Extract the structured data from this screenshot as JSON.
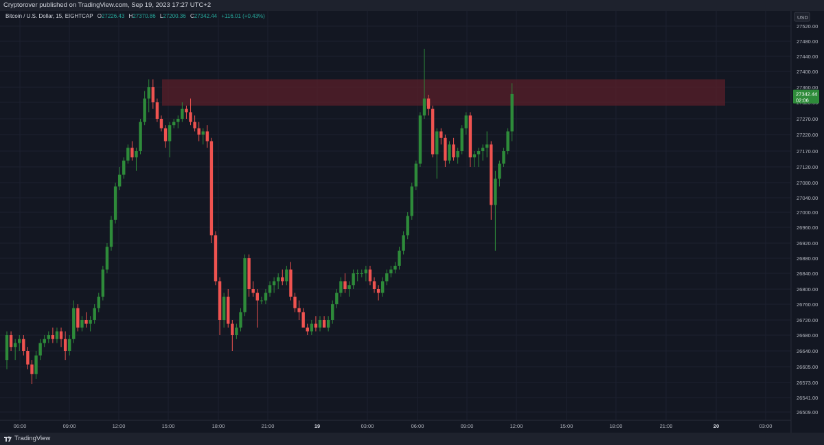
{
  "header": {
    "published": "Cryptorover published on TradingView.com, Sep 19, 2023 17:27 UTC+2"
  },
  "legend": {
    "symbol": "Bitcoin / U.S. Dollar, 15, EIGHTCAP",
    "o_label": "O",
    "o_value": "27226.43",
    "h_label": "H",
    "h_value": "27370.86",
    "l_label": "L",
    "l_value": "27200.36",
    "c_label": "C",
    "c_value": "27342.44",
    "change": "+116.01 (+0.43%)"
  },
  "price_axis": {
    "currency": "USD",
    "labels": [
      "27520.00",
      "27480.00",
      "27440.00",
      "27400.00",
      "27360.00",
      "27320.00",
      "27270.00",
      "27220.00",
      "27170.00",
      "27120.00",
      "27080.00",
      "27040.00",
      "27000.00",
      "26960.00",
      "26920.00",
      "26880.00",
      "26840.00",
      "26800.00",
      "26760.00",
      "26720.00",
      "26680.00",
      "26640.00",
      "26605.00",
      "26573.00",
      "26541.00",
      "26509.00"
    ],
    "current_price": "27342.44",
    "countdown": "02:06"
  },
  "time_axis": {
    "labels": [
      "06:00",
      "09:00",
      "12:00",
      "15:00",
      "18:00",
      "21:00",
      "19",
      "03:00",
      "06:00",
      "09:00",
      "12:00",
      "15:00",
      "18:00",
      "21:00",
      "20",
      "03:00"
    ]
  },
  "footer": {
    "brand": "TradingView"
  },
  "colors": {
    "up": "#26a69a",
    "up_candle": "#2e8b3a",
    "down": "#ef5350",
    "background": "#131722",
    "zone": "#5a1f2a",
    "price_tag": "#2e8b3a"
  },
  "chart_data": {
    "type": "candlestick",
    "symbol": "Bitcoin / U.S. Dollar",
    "interval": "15",
    "exchange": "EIGHTCAP",
    "x_start": "2023-09-18 05:00",
    "ylim": [
      26480,
      27560
    ],
    "resistance_zone": [
      27310,
      27380
    ],
    "candles": [
      [
        26620,
        26690,
        26600,
        26680
      ],
      [
        26680,
        26690,
        26640,
        26650
      ],
      [
        26650,
        26670,
        26620,
        26660
      ],
      [
        26660,
        26680,
        26640,
        26670
      ],
      [
        26670,
        26680,
        26630,
        26640
      ],
      [
        26640,
        26650,
        26600,
        26610
      ],
      [
        26610,
        26620,
        26570,
        26590
      ],
      [
        26590,
        26640,
        26580,
        26630
      ],
      [
        26630,
        26670,
        26620,
        26660
      ],
      [
        26660,
        26680,
        26650,
        26670
      ],
      [
        26670,
        26690,
        26660,
        26680
      ],
      [
        26680,
        26700,
        26660,
        26670
      ],
      [
        26670,
        26700,
        26660,
        26690
      ],
      [
        26690,
        26700,
        26650,
        26670
      ],
      [
        26670,
        26690,
        26620,
        26640
      ],
      [
        26640,
        26680,
        26630,
        26670
      ],
      [
        26670,
        26770,
        26660,
        26750
      ],
      [
        26750,
        26760,
        26690,
        26700
      ],
      [
        26700,
        26730,
        26690,
        26720
      ],
      [
        26720,
        26740,
        26700,
        26710
      ],
      [
        26710,
        26730,
        26690,
        26720
      ],
      [
        26720,
        26760,
        26710,
        26750
      ],
      [
        26750,
        26790,
        26740,
        26780
      ],
      [
        26780,
        26860,
        26770,
        26850
      ],
      [
        26850,
        26920,
        26840,
        26910
      ],
      [
        26910,
        26990,
        26900,
        26980
      ],
      [
        26980,
        27080,
        26970,
        27070
      ],
      [
        27070,
        27120,
        27060,
        27100
      ],
      [
        27100,
        27150,
        27090,
        27140
      ],
      [
        27140,
        27190,
        27130,
        27180
      ],
      [
        27180,
        27200,
        27140,
        27150
      ],
      [
        27150,
        27180,
        27110,
        27170
      ],
      [
        27170,
        27270,
        27160,
        27260
      ],
      [
        27260,
        27350,
        27250,
        27330
      ],
      [
        27330,
        27380,
        27290,
        27360
      ],
      [
        27360,
        27380,
        27300,
        27320
      ],
      [
        27320,
        27330,
        27260,
        27270
      ],
      [
        27270,
        27280,
        27230,
        27240
      ],
      [
        27240,
        27250,
        27180,
        27200
      ],
      [
        27200,
        27260,
        27150,
        27250
      ],
      [
        27250,
        27270,
        27240,
        27260
      ],
      [
        27260,
        27280,
        27240,
        27270
      ],
      [
        27270,
        27320,
        27260,
        27300
      ],
      [
        27300,
        27310,
        27270,
        27290
      ],
      [
        27290,
        27330,
        27250,
        27260
      ],
      [
        27260,
        27280,
        27230,
        27240
      ],
      [
        27240,
        27260,
        27200,
        27220
      ],
      [
        27220,
        27240,
        27190,
        27230
      ],
      [
        27230,
        27250,
        27180,
        27200
      ],
      [
        27200,
        27210,
        26920,
        26940
      ],
      [
        26940,
        26950,
        26810,
        26820
      ],
      [
        26820,
        26830,
        26680,
        26720
      ],
      [
        26720,
        26790,
        26700,
        26780
      ],
      [
        26780,
        26800,
        26700,
        26710
      ],
      [
        26710,
        26720,
        26640,
        26680
      ],
      [
        26680,
        26710,
        26670,
        26700
      ],
      [
        26700,
        26750,
        26690,
        26740
      ],
      [
        26740,
        26890,
        26730,
        26880
      ],
      [
        26880,
        26890,
        26780,
        26800
      ],
      [
        26800,
        26820,
        26780,
        26790
      ],
      [
        26790,
        26800,
        26700,
        26770
      ],
      [
        26770,
        26780,
        26760,
        26770
      ],
      [
        26770,
        26800,
        26760,
        26790
      ],
      [
        26790,
        26820,
        26780,
        26810
      ],
      [
        26810,
        26830,
        26790,
        26820
      ],
      [
        26820,
        26840,
        26800,
        26830
      ],
      [
        26830,
        26850,
        26810,
        26820
      ],
      [
        26820,
        26860,
        26810,
        26850
      ],
      [
        26850,
        26870,
        26770,
        26780
      ],
      [
        26780,
        26790,
        26740,
        26750
      ],
      [
        26750,
        26770,
        26720,
        26740
      ],
      [
        26740,
        26750,
        26700,
        26700
      ],
      [
        26700,
        26710,
        26680,
        26690
      ],
      [
        26690,
        26720,
        26680,
        26710
      ],
      [
        26710,
        26730,
        26690,
        26700
      ],
      [
        26700,
        26730,
        26690,
        26720
      ],
      [
        26720,
        26730,
        26700,
        26700
      ],
      [
        26700,
        26730,
        26690,
        26720
      ],
      [
        26720,
        26770,
        26710,
        26760
      ],
      [
        26760,
        26800,
        26750,
        26790
      ],
      [
        26790,
        26830,
        26780,
        26820
      ],
      [
        26820,
        26840,
        26790,
        26800
      ],
      [
        26800,
        26820,
        26780,
        26810
      ],
      [
        26810,
        26850,
        26800,
        26840
      ],
      [
        26840,
        26850,
        26820,
        26840
      ],
      [
        26840,
        26850,
        26830,
        26840
      ],
      [
        26840,
        26860,
        26820,
        26850
      ],
      [
        26850,
        26860,
        26810,
        26820
      ],
      [
        26820,
        26830,
        26790,
        26800
      ],
      [
        26800,
        26810,
        26770,
        26790
      ],
      [
        26790,
        26830,
        26780,
        26820
      ],
      [
        26820,
        26850,
        26810,
        26840
      ],
      [
        26840,
        26860,
        26830,
        26850
      ],
      [
        26850,
        26870,
        26840,
        26860
      ],
      [
        26860,
        26910,
        26850,
        26900
      ],
      [
        26900,
        26950,
        26890,
        26940
      ],
      [
        26940,
        27000,
        26930,
        26990
      ],
      [
        26990,
        27080,
        26980,
        27070
      ],
      [
        27070,
        27140,
        27060,
        27130
      ],
      [
        27130,
        27290,
        27120,
        27280
      ],
      [
        27280,
        27460,
        27270,
        27330
      ],
      [
        27330,
        27340,
        27280,
        27300
      ],
      [
        27300,
        27310,
        27150,
        27160
      ],
      [
        27160,
        27240,
        27090,
        27230
      ],
      [
        27230,
        27240,
        27190,
        27210
      ],
      [
        27210,
        27220,
        27120,
        27140
      ],
      [
        27140,
        27200,
        27130,
        27190
      ],
      [
        27190,
        27210,
        27140,
        27150
      ],
      [
        27150,
        27180,
        27130,
        27170
      ],
      [
        27170,
        27250,
        27160,
        27240
      ],
      [
        27240,
        27290,
        27220,
        27280
      ],
      [
        27280,
        27290,
        27120,
        27150
      ],
      [
        27150,
        27170,
        27120,
        27160
      ],
      [
        27160,
        27180,
        27120,
        27170
      ],
      [
        27170,
        27190,
        27140,
        27180
      ],
      [
        27180,
        27230,
        27150,
        27190
      ],
      [
        27190,
        27200,
        26980,
        27020
      ],
      [
        27020,
        27110,
        26900,
        27090
      ],
      [
        27090,
        27140,
        27070,
        27130
      ],
      [
        27130,
        27180,
        27120,
        27170
      ],
      [
        27170,
        27240,
        27160,
        27230
      ],
      [
        27230,
        27370,
        27200,
        27342
      ]
    ]
  }
}
